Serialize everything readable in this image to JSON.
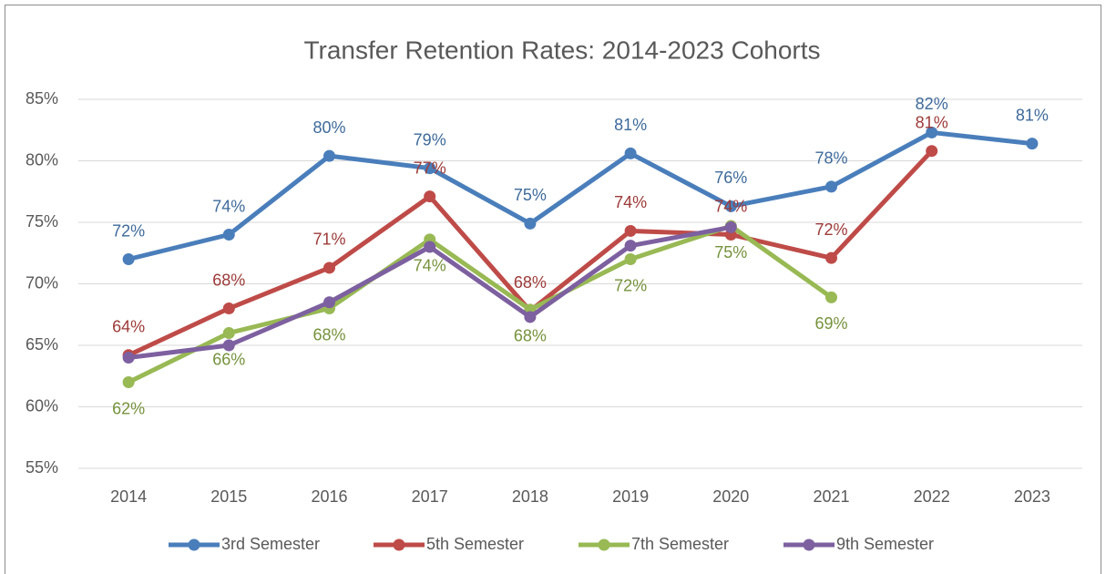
{
  "chart_data": {
    "type": "line",
    "title": "Transfer Retention Rates:  2014-2023 Cohorts",
    "categories": [
      "2014",
      "2015",
      "2016",
      "2017",
      "2018",
      "2019",
      "2020",
      "2021",
      "2022",
      "2023"
    ],
    "ylim": [
      55,
      85
    ],
    "yticks": [
      {
        "value": 55,
        "label": "55%"
      },
      {
        "value": 60,
        "label": "60%"
      },
      {
        "value": 65,
        "label": "65%"
      },
      {
        "value": 70,
        "label": "70%"
      },
      {
        "value": 75,
        "label": "75%"
      },
      {
        "value": 80,
        "label": "80%"
      },
      {
        "value": 85,
        "label": "85%"
      }
    ],
    "grid": true,
    "legend": "bottom",
    "series": [
      {
        "name": "3rd Semester",
        "color": "#4a7ebb",
        "values": [
          72.0,
          74.0,
          80.4,
          79.4,
          74.9,
          80.6,
          76.3,
          77.9,
          82.3,
          81.4
        ],
        "value_labels": [
          "72%",
          "74%",
          "80%",
          "79%",
          "75%",
          "81%",
          "76%",
          "78%",
          "82%",
          "81%"
        ]
      },
      {
        "name": "5th Semester",
        "color": "#be4b48",
        "values": [
          64.2,
          68.0,
          71.3,
          77.1,
          67.8,
          74.3,
          74.0,
          72.1,
          80.8,
          null
        ],
        "value_labels": [
          "64%",
          "68%",
          "71%",
          "77%",
          "68%",
          "74%",
          "74%",
          "72%",
          "81%",
          null
        ]
      },
      {
        "name": "7th Semester",
        "color": "#98b954",
        "values": [
          62.0,
          66.0,
          68.0,
          73.6,
          67.9,
          72.0,
          74.7,
          68.9,
          null,
          null
        ],
        "value_labels": [
          "62%",
          "66%",
          "68%",
          "74%",
          "68%",
          "72%",
          "75%",
          "69%",
          null,
          null
        ]
      },
      {
        "name": "9th Semester",
        "color": "#7d60a0",
        "values": [
          64.0,
          65.0,
          68.5,
          73.0,
          67.3,
          73.1,
          74.6,
          null,
          null,
          null
        ]
      }
    ]
  }
}
